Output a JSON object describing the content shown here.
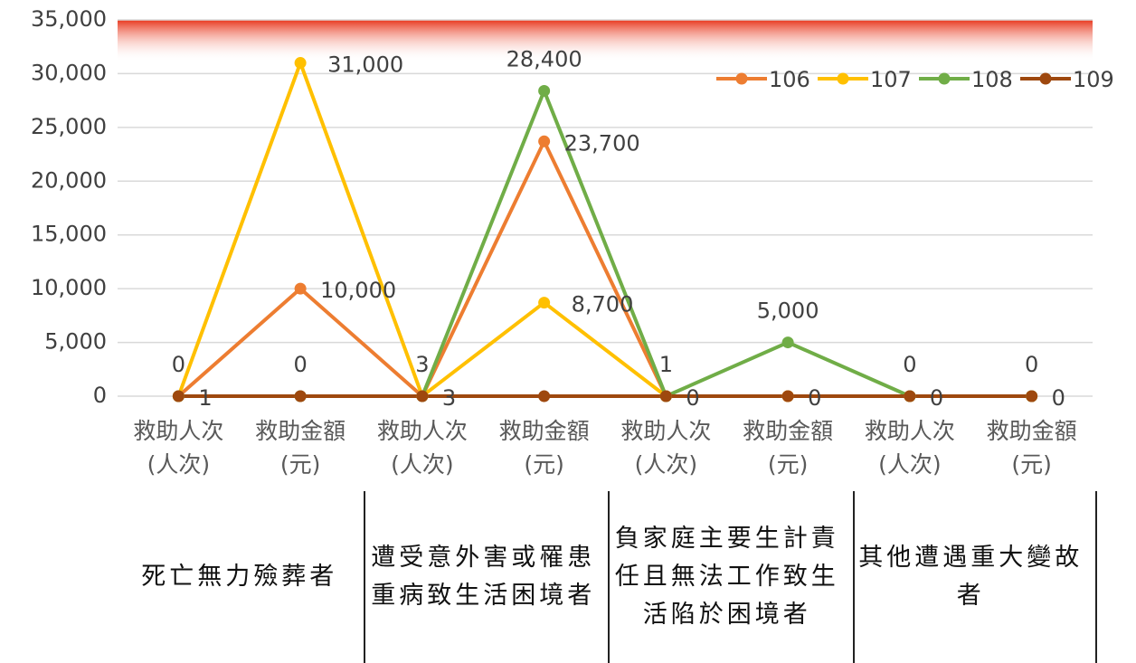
{
  "chart_data": {
    "type": "line",
    "categories": [
      "救助人次\n(人次)",
      "救助金額\n(元)",
      "救助人次\n(人次)",
      "救助金額\n(元)",
      "救助人次\n(人次)",
      "救助金額\n(元)",
      "救助人次\n(人次)",
      "救助金額\n(元)"
    ],
    "groups": [
      "死亡無力殮葬者",
      "遭受意外害或罹患重病致生活困境者",
      "負家庭主要生計責任且無法工作致生活陷於困境者",
      "其他遭遇重大變故者"
    ],
    "series": [
      {
        "name": "106",
        "color": "#ED7D31",
        "values": [
          1,
          10000,
          3,
          23700,
          0,
          0,
          0,
          0
        ],
        "value_labels": [
          "1",
          "10,000",
          "3",
          "23,700",
          "0",
          "0",
          "0",
          "0"
        ],
        "label_position": "right"
      },
      {
        "name": "107",
        "color": "#FFC000",
        "values": [
          0,
          31000,
          3,
          8700,
          1,
          0,
          0,
          0
        ],
        "value_labels": [
          "0",
          "31,000",
          "3",
          "8,700",
          "1",
          null,
          null,
          null
        ],
        "label_position": "above-right"
      },
      {
        "name": "108",
        "color": "#70AD47",
        "values": [
          0,
          0,
          0,
          28400,
          0,
          5000,
          0,
          0
        ],
        "value_labels": [
          null,
          "0",
          null,
          "28,400",
          null,
          "5,000",
          "0",
          "0"
        ],
        "label_position": "above"
      },
      {
        "name": "109",
        "color": "#9E480E",
        "values": [
          0,
          0,
          0,
          0,
          0,
          0,
          0,
          0
        ]
      }
    ],
    "ylim": [
      0,
      35000
    ],
    "yticks": [
      0,
      {
        "value": 5000,
        "label": "5,000"
      },
      {
        "value": 10000,
        "label": "10,000"
      },
      {
        "value": 15000,
        "label": "15,000"
      },
      {
        "value": 20000,
        "label": "20,000"
      },
      {
        "value": 25000,
        "label": "25,000"
      },
      {
        "value": 30000,
        "label": "30,000"
      },
      {
        "value": 35000,
        "label": "35,000"
      }
    ],
    "grid": true,
    "legend": "top-right"
  }
}
